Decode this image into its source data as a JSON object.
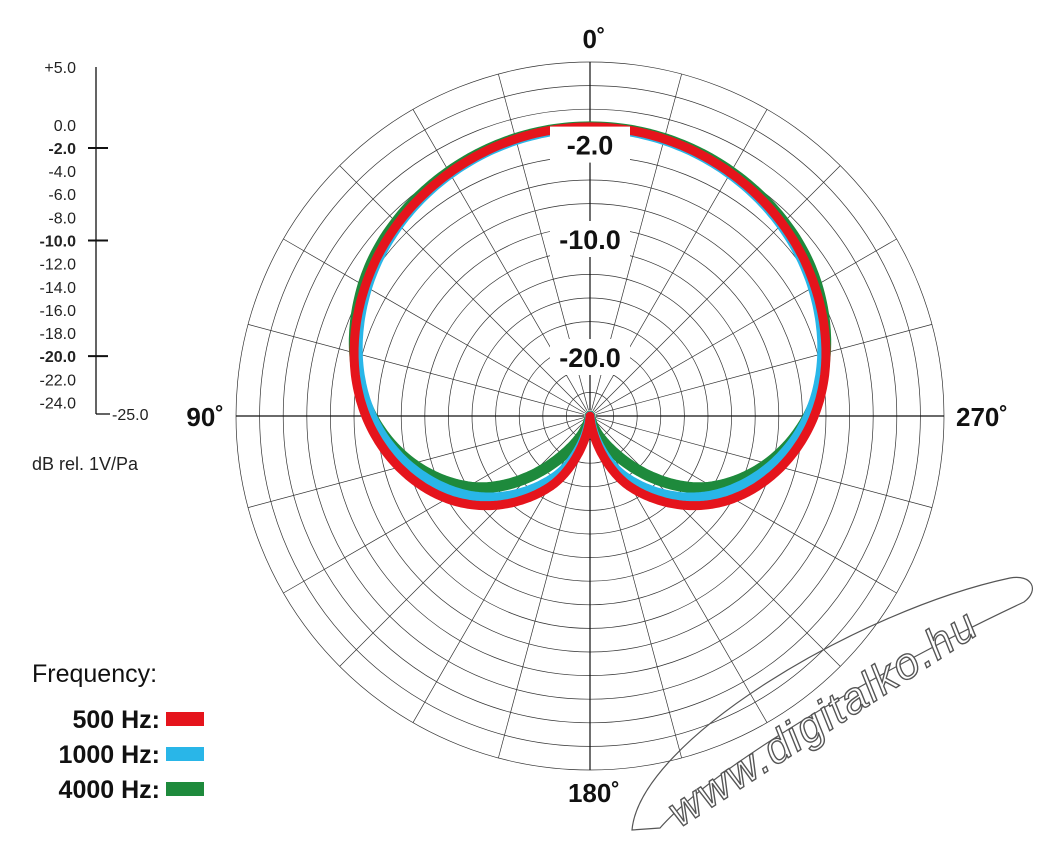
{
  "chart_data": {
    "type": "polar",
    "unit_label": "dB rel. 1V/Pa",
    "scale": {
      "min": -25.0,
      "max": 5.0,
      "step": 2.0,
      "labels": [
        {
          "value": 5.0,
          "label": "+5.0",
          "bold": false
        },
        {
          "value": 0.0,
          "label": "0.0",
          "bold": false
        },
        {
          "value": -2.0,
          "label": "-2.0",
          "bold": true
        },
        {
          "value": -4.0,
          "label": "-4.0",
          "bold": false
        },
        {
          "value": -6.0,
          "label": "-6.0",
          "bold": false
        },
        {
          "value": -8.0,
          "label": "-8.0",
          "bold": false
        },
        {
          "value": -10.0,
          "label": "-10.0",
          "bold": true
        },
        {
          "value": -12.0,
          "label": "-12.0",
          "bold": false
        },
        {
          "value": -14.0,
          "label": "-14.0",
          "bold": false
        },
        {
          "value": -16.0,
          "label": "-16.0",
          "bold": false
        },
        {
          "value": -18.0,
          "label": "-18.0",
          "bold": false
        },
        {
          "value": -20.0,
          "label": "-20.0",
          "bold": true
        },
        {
          "value": -22.0,
          "label": "-22.0",
          "bold": false
        },
        {
          "value": -24.0,
          "label": "-24.0",
          "bold": false
        },
        {
          "value": -25.0,
          "label": "-25.0",
          "bold": false
        }
      ]
    },
    "ring_labels": [
      {
        "value": -2.0,
        "label": "-2.0"
      },
      {
        "value": -10.0,
        "label": "-10.0"
      },
      {
        "value": -20.0,
        "label": "-20.0"
      }
    ],
    "angle_labels": [
      {
        "angle": 0,
        "label": "0˚"
      },
      {
        "angle": 90,
        "label": "90˚"
      },
      {
        "angle": 180,
        "label": "180˚"
      },
      {
        "angle": 270,
        "label": "270˚"
      }
    ],
    "angle_step": 15,
    "legend": {
      "title": "Frequency:",
      "placement": "bottom-left"
    },
    "series": [
      {
        "name": "4000 Hz:",
        "color": "#1e8a3c",
        "angles": [
          0,
          30,
          60,
          90,
          120,
          150,
          180,
          210,
          240,
          270,
          300,
          330
        ],
        "values": [
          -0.5,
          -1.1,
          -2.8,
          -6.5,
          -13.0,
          -22.0,
          -25.0,
          -22.0,
          -13.0,
          -6.5,
          -2.8,
          -1.1
        ]
      },
      {
        "name": "1000 Hz:",
        "color": "#29b6e8",
        "angles": [
          0,
          30,
          60,
          90,
          120,
          150,
          180,
          210,
          240,
          270,
          300,
          330
        ],
        "values": [
          -0.6,
          -1.3,
          -3.2,
          -6.5,
          -12.0,
          -19.0,
          -25.0,
          -19.0,
          -12.0,
          -6.5,
          -3.2,
          -1.3
        ]
      },
      {
        "name": "500 Hz:",
        "color": "#e5141c",
        "angles": [
          0,
          30,
          60,
          90,
          120,
          150,
          180,
          210,
          240,
          270,
          300,
          330
        ],
        "values": [
          -0.5,
          -1.2,
          -3.0,
          -6.0,
          -11.0,
          -18.0,
          -25.0,
          -18.0,
          -11.0,
          -6.0,
          -3.0,
          -1.2
        ]
      }
    ]
  },
  "watermark": {
    "text": "www.digitalko.hu"
  }
}
